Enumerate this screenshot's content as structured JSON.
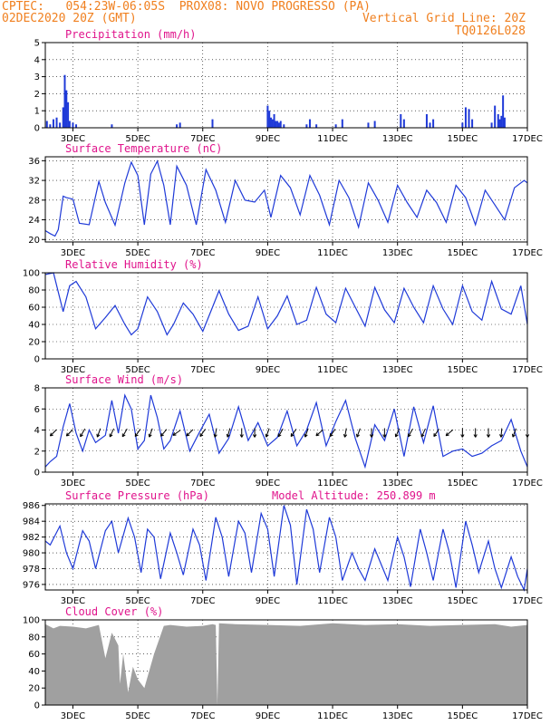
{
  "header": {
    "source": "CPTEC:",
    "coords": "054:23W-06:05S",
    "station": "PROX08: NOVO PROGRESSO (PA)",
    "run": "02DEC2020 20Z (GMT)",
    "grid_note": "Vertical Grid Line: 20Z",
    "code": "TQ0126L028"
  },
  "x_axis": {
    "ticks": [
      "3DEC",
      "5DEC",
      "7DEC",
      "9DEC",
      "11DEC",
      "13DEC",
      "15DEC",
      "17DEC"
    ],
    "tick_days": [
      3,
      5,
      7,
      9,
      11,
      13,
      15,
      17
    ],
    "start_day": 2.15,
    "end_day": 17.0
  },
  "colors": {
    "line": "#1f3ad8",
    "bar": "#1f3ad8",
    "cloud": "#a0a0a0",
    "title": "#e0148c",
    "header": "#f08020"
  },
  "chart_data": [
    {
      "type": "bar",
      "title": "Precipitation (mm/h)",
      "ylim": [
        0,
        5
      ],
      "yticks": [
        0,
        1,
        2,
        3,
        4,
        5
      ],
      "x": [
        2.2,
        2.3,
        2.4,
        2.5,
        2.6,
        2.7,
        2.75,
        2.8,
        2.85,
        2.9,
        3.0,
        3.1,
        4.2,
        6.2,
        6.3,
        7.3,
        9.0,
        9.05,
        9.1,
        9.15,
        9.2,
        9.25,
        9.3,
        9.35,
        9.4,
        9.5,
        10.2,
        10.3,
        10.5,
        11.1,
        11.3,
        12.1,
        12.3,
        13.1,
        13.2,
        13.9,
        14.0,
        14.1,
        15.0,
        15.1,
        15.2,
        15.3,
        15.9,
        16.0,
        16.1,
        16.15,
        16.2,
        16.25,
        16.3
      ],
      "values": [
        0.4,
        0.2,
        0.5,
        0.6,
        0.3,
        1.2,
        3.1,
        2.2,
        1.5,
        0.4,
        0.3,
        0.2,
        0.2,
        0.2,
        0.3,
        0.5,
        1.3,
        1.0,
        0.6,
        0.5,
        0.8,
        0.4,
        0.4,
        0.3,
        0.4,
        0.2,
        0.2,
        0.5,
        0.2,
        0.2,
        0.5,
        0.3,
        0.4,
        0.8,
        0.5,
        0.8,
        0.3,
        0.5,
        0.3,
        1.2,
        1.1,
        0.5,
        0.3,
        1.3,
        0.8,
        0.5,
        0.7,
        1.9,
        0.6
      ]
    },
    {
      "type": "line",
      "title": "Surface Temperature (nC)",
      "ylim": [
        19.5,
        36.8
      ],
      "yticks": [
        20,
        24,
        28,
        32,
        36
      ],
      "x": [
        2.15,
        2.3,
        2.45,
        2.55,
        2.7,
        2.8,
        3.0,
        3.2,
        3.5,
        3.8,
        4.0,
        4.3,
        4.6,
        4.8,
        5.0,
        5.2,
        5.4,
        5.6,
        5.8,
        6.0,
        6.2,
        6.5,
        6.8,
        7.1,
        7.4,
        7.7,
        8.0,
        8.3,
        8.6,
        8.9,
        9.1,
        9.4,
        9.7,
        10.0,
        10.3,
        10.6,
        10.9,
        11.2,
        11.5,
        11.8,
        12.1,
        12.4,
        12.7,
        13.0,
        13.3,
        13.6,
        13.9,
        14.2,
        14.5,
        14.8,
        15.1,
        15.4,
        15.7,
        16.0,
        16.3,
        16.6,
        16.9,
        17.0
      ],
      "values": [
        21.8,
        21.2,
        20.7,
        22.0,
        28.8,
        28.5,
        28.2,
        23.3,
        23.0,
        31.8,
        27.5,
        22.9,
        31.5,
        35.7,
        33.0,
        23.0,
        33.3,
        35.9,
        31.0,
        23.0,
        34.9,
        31.0,
        23.0,
        34.2,
        30.0,
        23.5,
        32.0,
        28.0,
        27.6,
        30.0,
        24.5,
        33.0,
        30.5,
        25.0,
        33.0,
        29.0,
        23.0,
        32.0,
        28.5,
        22.5,
        31.5,
        28.0,
        23.5,
        31.0,
        27.5,
        24.5,
        30.0,
        27.5,
        23.5,
        31.0,
        28.5,
        23.0,
        30.0,
        27.0,
        24.0,
        30.5,
        32.0,
        31.5
      ]
    },
    {
      "type": "line",
      "title": "Relative Humidity (%)",
      "ylim": [
        0,
        100
      ],
      "yticks": [
        0,
        20,
        40,
        60,
        80,
        100
      ],
      "x": [
        2.15,
        2.4,
        2.7,
        2.9,
        3.1,
        3.4,
        3.7,
        4.0,
        4.3,
        4.6,
        4.8,
        5.0,
        5.3,
        5.6,
        5.9,
        6.1,
        6.4,
        6.7,
        7.0,
        7.3,
        7.5,
        7.8,
        8.1,
        8.4,
        8.7,
        9.0,
        9.3,
        9.6,
        9.9,
        10.2,
        10.5,
        10.8,
        11.1,
        11.4,
        11.7,
        12.0,
        12.3,
        12.6,
        12.9,
        13.2,
        13.5,
        13.8,
        14.1,
        14.4,
        14.7,
        15.0,
        15.3,
        15.6,
        15.9,
        16.2,
        16.5,
        16.8,
        17.0
      ],
      "values": [
        98,
        100,
        55,
        85,
        90,
        72,
        35,
        48,
        62,
        40,
        28,
        35,
        72,
        55,
        28,
        40,
        65,
        52,
        32,
        60,
        79,
        52,
        33,
        38,
        72,
        35,
        50,
        73,
        40,
        45,
        83,
        52,
        42,
        82,
        60,
        38,
        83,
        57,
        42,
        82,
        60,
        42,
        85,
        58,
        40,
        85,
        55,
        45,
        90,
        58,
        52,
        85,
        40
      ]
    },
    {
      "type": "line",
      "title": "Surface Wind (m/s)",
      "ylim": [
        0,
        8
      ],
      "yticks": [
        0,
        2,
        4,
        6,
        8
      ],
      "x": [
        2.15,
        2.3,
        2.5,
        2.7,
        2.9,
        3.1,
        3.3,
        3.5,
        3.7,
        4.0,
        4.2,
        4.4,
        4.6,
        4.8,
        5.0,
        5.2,
        5.4,
        5.6,
        5.8,
        6.0,
        6.3,
        6.6,
        6.9,
        7.2,
        7.5,
        7.8,
        8.1,
        8.4,
        8.7,
        9.0,
        9.3,
        9.6,
        9.9,
        10.2,
        10.5,
        10.8,
        11.1,
        11.4,
        11.7,
        12.0,
        12.3,
        12.6,
        12.9,
        13.2,
        13.5,
        13.8,
        14.1,
        14.4,
        14.7,
        15.0,
        15.3,
        15.6,
        15.9,
        16.2,
        16.5,
        16.8,
        17.0
      ],
      "values": [
        0.5,
        1.0,
        1.5,
        4.3,
        6.5,
        3.7,
        2.0,
        4.0,
        2.8,
        3.5,
        6.8,
        3.7,
        7.3,
        6.0,
        2.2,
        3.0,
        7.3,
        5.2,
        2.2,
        3.0,
        5.8,
        2.0,
        3.8,
        5.5,
        1.8,
        3.2,
        6.2,
        3.0,
        4.7,
        2.5,
        3.3,
        5.8,
        2.5,
        4.0,
        6.6,
        2.5,
        4.8,
        6.8,
        3.2,
        0.5,
        4.5,
        3.0,
        6.0,
        1.5,
        6.2,
        2.8,
        6.3,
        1.5,
        2.0,
        2.2,
        1.5,
        1.8,
        2.5,
        3.0,
        5.0,
        2.0,
        0.5
      ],
      "arrows_x": [
        2.4,
        2.9,
        3.3,
        3.8,
        4.2,
        4.6,
        5.0,
        5.4,
        5.8,
        6.2,
        6.6,
        7.0,
        7.4,
        7.8,
        8.2,
        8.6,
        9.0,
        9.4,
        9.8,
        10.2,
        10.6,
        11.0,
        11.4,
        11.8,
        12.2,
        12.6,
        13.0,
        13.4,
        13.8,
        14.2,
        14.6,
        15.0,
        15.4,
        15.8,
        16.2,
        16.6,
        17.0
      ],
      "arrows_dir": [
        225,
        225,
        210,
        200,
        205,
        210,
        215,
        200,
        220,
        235,
        225,
        215,
        190,
        195,
        180,
        180,
        200,
        210,
        215,
        200,
        230,
        215,
        190,
        200,
        180,
        180,
        205,
        210,
        205,
        215,
        230,
        180,
        180,
        180,
        185,
        200,
        180
      ]
    },
    {
      "type": "line",
      "title": "Surface Pressure (hPa)",
      "annotation": "Model Altitude: 250.899 m",
      "ylim": [
        975.3,
        986.2
      ],
      "yticks": [
        976,
        978,
        980,
        982,
        984,
        986
      ],
      "x": [
        2.15,
        2.3,
        2.6,
        2.8,
        3.0,
        3.3,
        3.5,
        3.7,
        4.0,
        4.2,
        4.4,
        4.7,
        4.9,
        5.1,
        5.3,
        5.5,
        5.7,
        6.0,
        6.2,
        6.4,
        6.7,
        6.9,
        7.1,
        7.4,
        7.6,
        7.8,
        8.1,
        8.3,
        8.5,
        8.8,
        9.0,
        9.2,
        9.5,
        9.7,
        9.9,
        10.2,
        10.4,
        10.6,
        10.9,
        11.1,
        11.3,
        11.6,
        11.8,
        12.0,
        12.3,
        12.5,
        12.7,
        13.0,
        13.2,
        13.4,
        13.7,
        13.9,
        14.1,
        14.4,
        14.6,
        14.8,
        15.1,
        15.3,
        15.5,
        15.8,
        16.0,
        16.2,
        16.5,
        16.7,
        16.9,
        17.0
      ],
      "values": [
        981.5,
        981.0,
        983.4,
        980.0,
        978.0,
        982.8,
        981.5,
        978.0,
        982.8,
        984.0,
        980.0,
        984.4,
        982.0,
        977.5,
        983.0,
        982.0,
        976.7,
        982.5,
        980.0,
        977.2,
        983.0,
        981.0,
        976.5,
        984.5,
        982.0,
        977.0,
        984.0,
        982.5,
        977.5,
        985.0,
        983.0,
        977.0,
        986.0,
        983.5,
        976.0,
        985.5,
        983.0,
        977.5,
        984.5,
        982.0,
        976.5,
        980.0,
        978.0,
        976.5,
        980.5,
        978.5,
        976.5,
        982.0,
        979.5,
        975.7,
        983.0,
        980.0,
        976.5,
        983.0,
        980.0,
        975.6,
        984.0,
        981.0,
        977.5,
        981.5,
        978.0,
        975.6,
        979.5,
        977.0,
        975.3,
        978.0
      ]
    },
    {
      "type": "area",
      "title": "Cloud Cover (%)",
      "ylim": [
        0,
        100
      ],
      "yticks": [
        0,
        20,
        40,
        60,
        80,
        100
      ],
      "x": [
        2.15,
        2.4,
        2.6,
        3.0,
        3.4,
        3.8,
        4.0,
        4.2,
        4.4,
        4.45,
        4.55,
        4.7,
        4.85,
        5.0,
        5.2,
        5.5,
        5.8,
        6.0,
        6.5,
        7.0,
        7.3,
        7.4,
        7.45,
        7.5,
        8.0,
        9.0,
        10.0,
        11.0,
        12.0,
        13.0,
        14.0,
        15.0,
        16.0,
        16.5,
        17.0
      ],
      "values": [
        95,
        90,
        93,
        92,
        90,
        94,
        55,
        85,
        70,
        25,
        60,
        15,
        45,
        30,
        20,
        60,
        93,
        94,
        92,
        93,
        95,
        94,
        0,
        96,
        95,
        94,
        93,
        96,
        94,
        95,
        93,
        94,
        95,
        92,
        94
      ]
    }
  ]
}
